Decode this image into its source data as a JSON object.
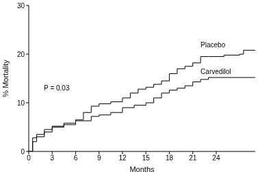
{
  "chart_data": {
    "type": "line",
    "x_label": "Months",
    "y_label": "% Mortality",
    "xlim": [
      0,
      29
    ],
    "xticks": [
      0,
      3,
      6,
      9,
      12,
      15,
      18,
      21,
      24
    ],
    "ylim": [
      0,
      30
    ],
    "yticks": [
      0,
      10,
      20,
      30
    ],
    "series": [
      {
        "name": "Placebo",
        "color": "#000000",
        "line_style": "step",
        "x": [
          0,
          0.5,
          1,
          2,
          3,
          4.5,
          6,
          7,
          8,
          9,
          10.5,
          12,
          13,
          14,
          15,
          16,
          17,
          18,
          19,
          20,
          21,
          22,
          23,
          25,
          27,
          27.5,
          29
        ],
        "values": [
          0,
          2,
          3,
          4,
          5,
          5.5,
          6.5,
          8,
          9.3,
          9.8,
          10.2,
          11,
          12,
          12.8,
          13.2,
          13.8,
          14.5,
          16,
          17,
          17.5,
          18.2,
          19.5,
          19.5,
          19.8,
          20,
          20.8,
          20.8
        ]
      },
      {
        "name": "Carvedilol",
        "color": "#000000",
        "line_style": "step",
        "x": [
          0,
          0.5,
          1,
          2,
          3,
          4.5,
          6,
          8,
          9,
          10.5,
          12,
          13.5,
          15,
          16,
          17,
          18,
          19,
          20,
          21,
          22,
          23,
          29
        ],
        "values": [
          0,
          2.8,
          3.5,
          4.5,
          5.2,
          5.8,
          6.3,
          7.2,
          7.5,
          8,
          9,
          9.5,
          10,
          11,
          12,
          12.6,
          13,
          13.5,
          14.3,
          14.8,
          15.2,
          15.2
        ]
      }
    ],
    "annotations": [
      {
        "text": "P = 0.03",
        "x": 1.5,
        "y": 13
      }
    ]
  }
}
